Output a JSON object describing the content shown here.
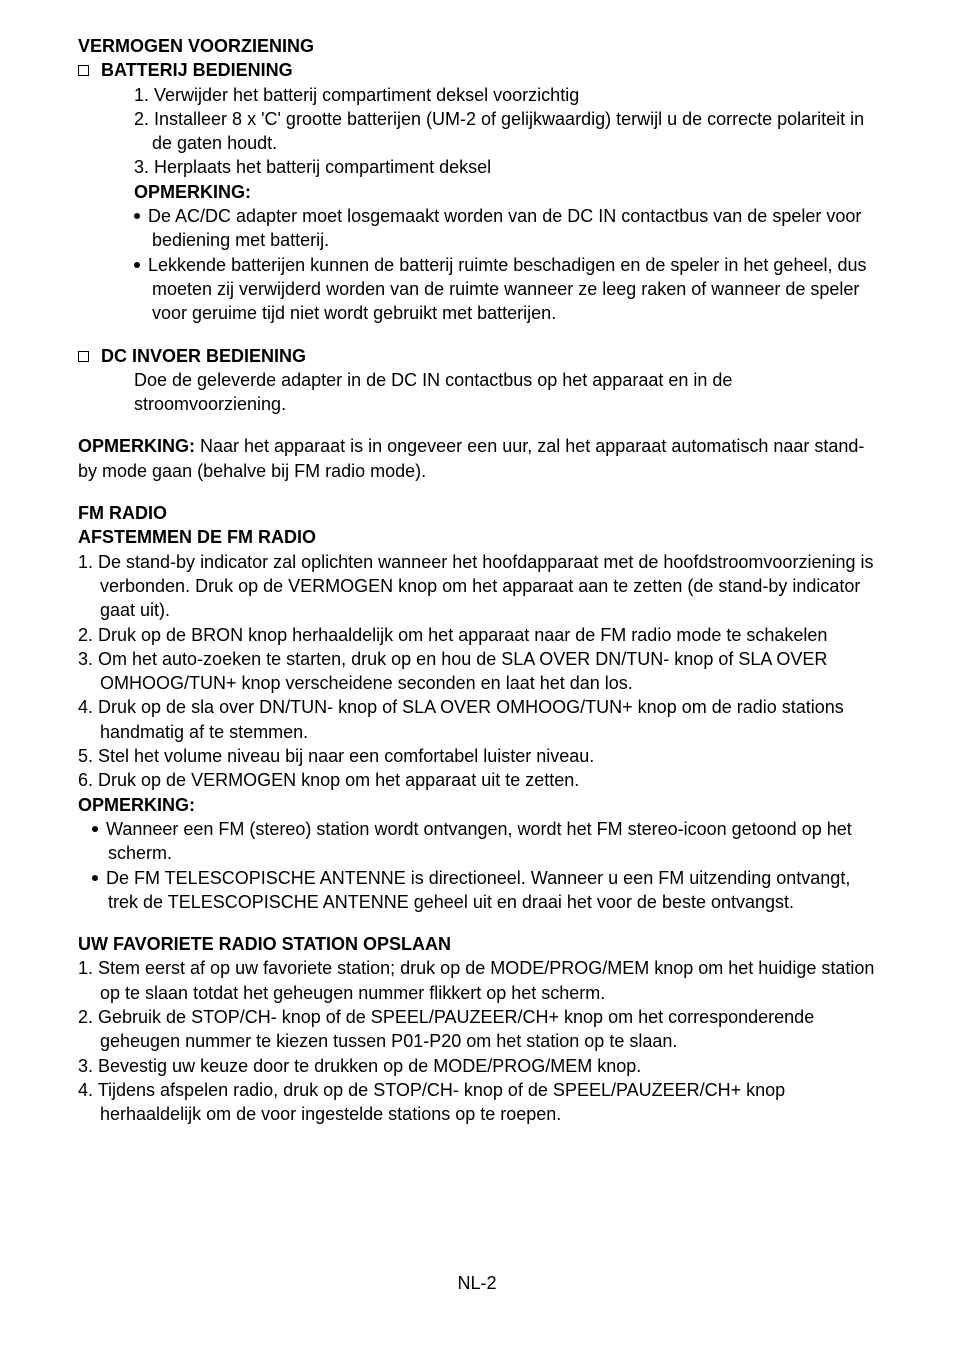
{
  "colors": {
    "text": "#000000",
    "background": "#ffffff"
  },
  "typography": {
    "body_fontsize_pt": 13,
    "heading_weight": "bold",
    "font_family": "Arial"
  },
  "s1": {
    "title": "VERMOGEN VOORZIENING",
    "batt": {
      "heading": "BATTERIJ BEDIENING",
      "n1": "1. Verwijder het batterij compartiment deksel voorzichtig",
      "n2": "2. Installeer 8 x 'C' grootte batterijen (UM-2 of gelijkwaardig) terwijl u de correcte polariteit in de gaten houdt.",
      "n3": "3. Herplaats het batterij compartiment deksel",
      "note_label": "OPMERKING:",
      "b1": "De AC/DC adapter moet losgemaakt worden van de DC IN contactbus van de speler voor bediening met batterij.",
      "b2": "Lekkende batterijen kunnen de batterij ruimte beschadigen en de speler in het geheel, dus moeten zij verwijderd worden van de ruimte wanneer ze leeg raken of wanneer de speler voor geruime tijd niet wordt gebruikt met batterijen."
    },
    "dc": {
      "heading": "DC INVOER BEDIENING",
      "p1": "Doe de geleverde adapter in de DC IN contactbus op het apparaat en in de stroomvoorziening."
    },
    "standby_note_label": "OPMERKING:",
    "standby_note_text": " Naar het apparaat is in ongeveer een uur, zal het apparaat automatisch naar stand-by mode gaan (behalve bij FM radio mode)."
  },
  "s2": {
    "title": "FM RADIO",
    "tune": {
      "heading": "AFSTEMMEN DE FM RADIO",
      "n1": "1. De stand-by indicator zal oplichten wanneer het hoofdapparaat met de hoofdstroomvoorziening is verbonden. Druk op de VERMOGEN knop om het apparaat aan te zetten (de stand-by indicator gaat uit).",
      "n2": "2. Druk op de BRON knop herhaaldelijk om het apparaat naar de FM radio mode te schakelen",
      "n3": "3. Om het auto-zoeken te starten, druk op en hou de SLA OVER DN/TUN- knop of SLA OVER OMHOOG/TUN+ knop verscheidene seconden en laat het dan los.",
      "n4": "4. Druk op de sla over DN/TUN- knop of SLA OVER OMHOOG/TUN+ knop om de radio stations handmatig af te stemmen.",
      "n5": "5. Stel het volume niveau bij naar een comfortabel luister niveau.",
      "n6": "6. Druk op de VERMOGEN knop om het apparaat uit te zetten.",
      "note_label": "OPMERKING:",
      "b1": "Wanneer een FM (stereo) station wordt ontvangen, wordt het FM stereo-icoon getoond op het scherm.",
      "b2": "De FM TELESCOPISCHE ANTENNE is directioneel. Wanneer u een FM uitzending ontvangt, trek de TELESCOPISCHE ANTENNE geheel uit en draai het voor de beste ontvangst."
    },
    "fav": {
      "heading": "UW FAVORIETE RADIO STATION OPSLAAN",
      "n1": "1. Stem eerst af op uw favoriete station; druk op de MODE/PROG/MEM knop om het huidige station op te slaan totdat het geheugen nummer flikkert op het scherm.",
      "n2": "2. Gebruik de STOP/CH- knop of de SPEEL/PAUZEER/CH+ knop om het corresponderende geheugen nummer te kiezen tussen P01-P20 om het station op te slaan.",
      "n3": "3. Bevestig uw keuze door te drukken op de MODE/PROG/MEM knop.",
      "n4": "4. Tijdens afspelen radio, druk op de STOP/CH- knop of de SPEEL/PAUZEER/CH+ knop herhaaldelijk om de voor ingestelde stations op te roepen."
    }
  },
  "footer": "NL-2"
}
